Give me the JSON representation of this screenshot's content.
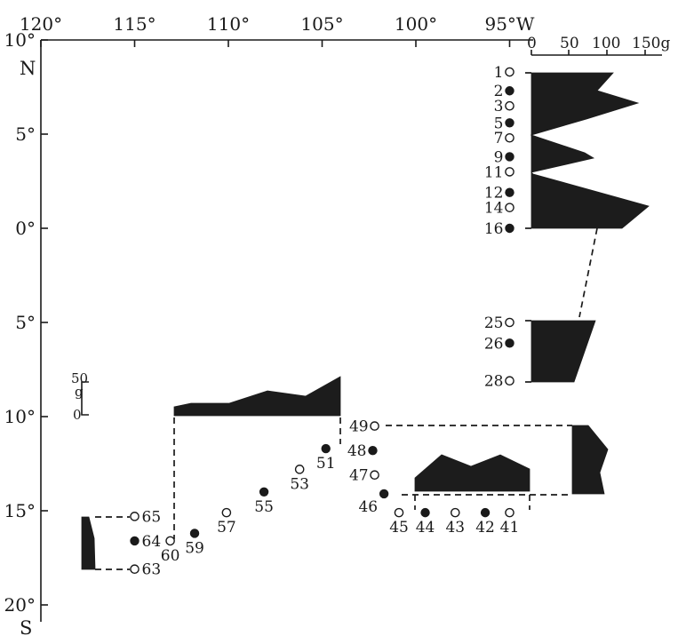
{
  "map": {
    "lon_axis": {
      "ticks": [
        {
          "value": 120,
          "label": "120°"
        },
        {
          "value": 115,
          "label": "115°"
        },
        {
          "value": 110,
          "label": "110°"
        },
        {
          "value": 105,
          "label": "105°"
        },
        {
          "value": 100,
          "label": "100°"
        },
        {
          "value": 95,
          "label": "95°W"
        }
      ]
    },
    "lat_axis": {
      "ticks": [
        {
          "value": 10,
          "label": "10°"
        },
        {
          "value": 5,
          "label": "5°"
        },
        {
          "value": 0,
          "label": "0°"
        },
        {
          "value": -5,
          "label": "5°"
        },
        {
          "value": -10,
          "label": "10°"
        },
        {
          "value": -15,
          "label": "15°"
        },
        {
          "value": -20,
          "label": "20°"
        }
      ],
      "north_label": "N",
      "south_label": "S"
    },
    "biomass_scale": {
      "ticks": [
        "0",
        "50",
        "100",
        "150g"
      ]
    },
    "small_scale": {
      "top_label": "50",
      "unit_label": "g",
      "bottom_label": "0"
    },
    "stations": [
      {
        "id": "1",
        "lon": 95.0,
        "lat": 8.3,
        "filled": false
      },
      {
        "id": "2",
        "lon": 95.0,
        "lat": 7.3,
        "filled": true
      },
      {
        "id": "3",
        "lon": 95.0,
        "lat": 6.5,
        "filled": false
      },
      {
        "id": "5",
        "lon": 95.0,
        "lat": 5.6,
        "filled": true
      },
      {
        "id": "7",
        "lon": 95.0,
        "lat": 4.8,
        "filled": false
      },
      {
        "id": "9",
        "lon": 95.0,
        "lat": 3.8,
        "filled": true
      },
      {
        "id": "11",
        "lon": 95.0,
        "lat": 3.0,
        "filled": false
      },
      {
        "id": "12",
        "lon": 95.0,
        "lat": 1.9,
        "filled": true
      },
      {
        "id": "14",
        "lon": 95.0,
        "lat": 1.1,
        "filled": false
      },
      {
        "id": "16",
        "lon": 95.0,
        "lat": 0.0,
        "filled": true
      },
      {
        "id": "25",
        "lon": 95.0,
        "lat": -5.0,
        "filled": false
      },
      {
        "id": "26",
        "lon": 95.0,
        "lat": -6.1,
        "filled": true
      },
      {
        "id": "28",
        "lon": 95.0,
        "lat": -8.1,
        "filled": false
      },
      {
        "id": "41",
        "lon": 95.0,
        "lat": -15.1,
        "filled": false
      },
      {
        "id": "42",
        "lon": 96.3,
        "lat": -15.1,
        "filled": true
      },
      {
        "id": "43",
        "lon": 97.9,
        "lat": -15.1,
        "filled": false
      },
      {
        "id": "44",
        "lon": 99.5,
        "lat": -15.1,
        "filled": true
      },
      {
        "id": "45",
        "lon": 100.9,
        "lat": -15.1,
        "filled": false
      },
      {
        "id": "46",
        "lon": 101.7,
        "lat": -14.1,
        "filled": true
      },
      {
        "id": "47",
        "lon": 102.2,
        "lat": -13.1,
        "filled": false
      },
      {
        "id": "48",
        "lon": 102.3,
        "lat": -11.8,
        "filled": true
      },
      {
        "id": "49",
        "lon": 102.2,
        "lat": -10.5,
        "filled": false
      },
      {
        "id": "51",
        "lon": 104.8,
        "lat": -11.7,
        "filled": true
      },
      {
        "id": "53",
        "lon": 106.2,
        "lat": -12.8,
        "filled": false
      },
      {
        "id": "55",
        "lon": 108.1,
        "lat": -14.0,
        "filled": true
      },
      {
        "id": "57",
        "lon": 110.1,
        "lat": -15.1,
        "filled": false
      },
      {
        "id": "59",
        "lon": 111.8,
        "lat": -16.2,
        "filled": true
      },
      {
        "id": "60",
        "lon": 113.1,
        "lat": -16.6,
        "filled": false
      },
      {
        "id": "63",
        "lon": 115.0,
        "lat": -18.1,
        "filled": false
      },
      {
        "id": "64",
        "lon": 115.0,
        "lat": -16.6,
        "filled": true
      },
      {
        "id": "65",
        "lon": 115.0,
        "lat": -15.3,
        "filled": false
      }
    ]
  }
}
